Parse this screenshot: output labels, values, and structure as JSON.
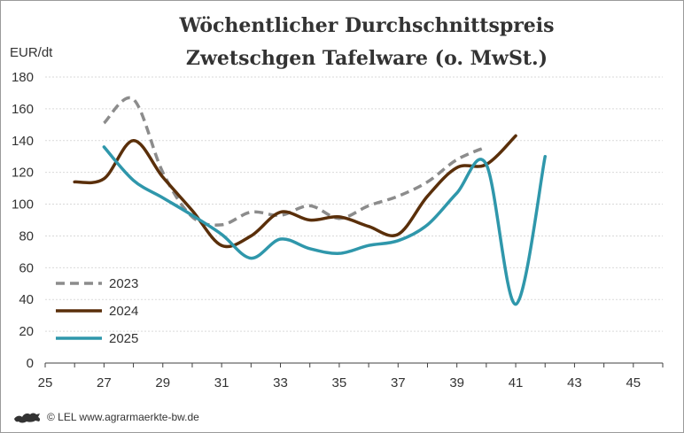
{
  "chart_data": {
    "type": "line",
    "title": [
      "Wöchentlicher Durchschnittspreis",
      "Zwetschgen Tafelware (o. MwSt.)"
    ],
    "ylabel": "EUR/dt",
    "xlabel": "",
    "xlim": [
      25,
      46
    ],
    "ylim": [
      0,
      180
    ],
    "xticks": [
      25,
      27,
      29,
      31,
      33,
      35,
      37,
      39,
      41,
      43,
      45
    ],
    "yticks": [
      0,
      20,
      40,
      60,
      80,
      100,
      120,
      140,
      160,
      180
    ],
    "grid": "horizontal",
    "legend": "bottom-left inside",
    "series": [
      {
        "name": "2023",
        "color": "#8c8c8c",
        "dash": "dashed",
        "x": [
          27,
          28,
          29,
          30,
          31,
          32,
          33,
          34,
          35,
          36,
          37,
          38,
          39,
          40
        ],
        "y": [
          151,
          166,
          120,
          92,
          87,
          95,
          93,
          99,
          91,
          99,
          105,
          114,
          128,
          136
        ]
      },
      {
        "name": "2024",
        "color": "#5a2f0a",
        "dash": "solid",
        "x": [
          26,
          27,
          28,
          29,
          30,
          31,
          32,
          33,
          34,
          35,
          36,
          37,
          38,
          39,
          40,
          41
        ],
        "y": [
          114,
          116,
          140,
          117,
          96,
          74,
          80,
          95,
          90,
          92,
          86,
          81,
          105,
          123,
          125,
          143
        ]
      },
      {
        "name": "2025",
        "color": "#2f97ab",
        "dash": "solid",
        "x": [
          27,
          28,
          29,
          30,
          31,
          32,
          33,
          34,
          35,
          36,
          37,
          38,
          39,
          40,
          41,
          42
        ],
        "y": [
          136,
          115,
          104,
          93,
          81,
          66,
          78,
          72,
          69,
          74,
          77,
          87,
          107,
          125,
          37,
          130
        ]
      }
    ]
  },
  "footer": {
    "logo_icon": "lion-coat-of-arms-icon",
    "text": "© LEL www.agrarmaerkte-bw.de"
  }
}
